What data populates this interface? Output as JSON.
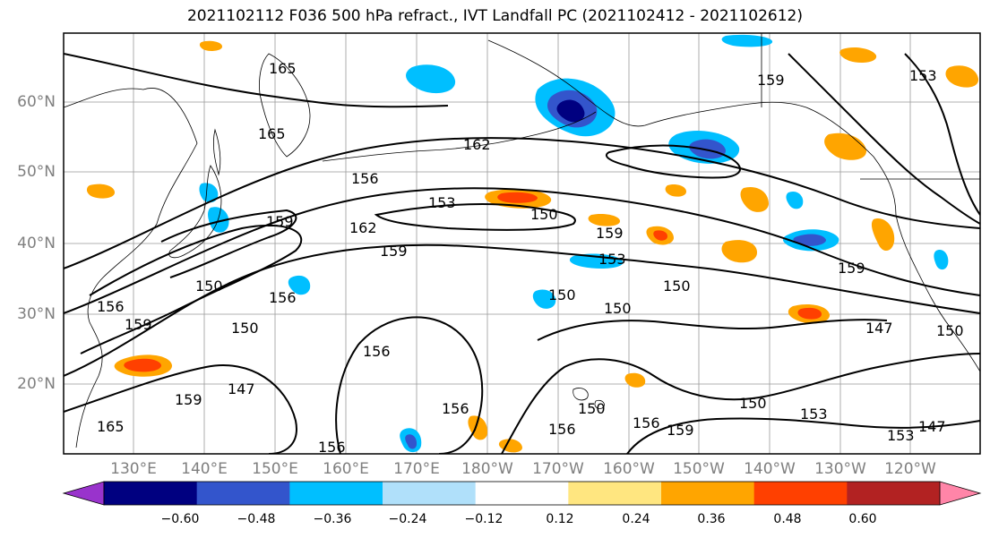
{
  "title": "2021102112 F036 500 hPa refract., IVT Landfall PC (2021102412 - 2021102612)",
  "map": {
    "lat_labels": [
      "60°N",
      "50°N",
      "40°N",
      "30°N",
      "20°N"
    ],
    "lon_labels": [
      "130°E",
      "140°E",
      "150°E",
      "160°E",
      "170°E",
      "180°W",
      "170°W",
      "160°W",
      "150°W",
      "140°W",
      "130°W",
      "120°W"
    ],
    "contour_labels": [
      "165",
      "165",
      "162",
      "156",
      "153",
      "150",
      "159",
      "162",
      "159",
      "159",
      "153",
      "150",
      "156",
      "150",
      "159",
      "150",
      "150",
      "156",
      "147",
      "159",
      "156",
      "150",
      "147",
      "156",
      "150",
      "156",
      "159",
      "153",
      "150",
      "147",
      "156",
      "153",
      "159",
      "156",
      "150",
      "159",
      "165",
      "153"
    ]
  },
  "colorbar": {
    "colors": [
      "#9933cc",
      "#000080",
      "#3355cc",
      "#00bfff",
      "#b0e0fa",
      "#ffffff",
      "#ffe680",
      "#ffa500",
      "#ff4000",
      "#b22222",
      "#ff85a8"
    ],
    "tick_labels": [
      "−0.60",
      "−0.48",
      "−0.36",
      "−0.24",
      "−0.12",
      "0.12",
      "0.24",
      "0.36",
      "0.48",
      "0.60"
    ]
  },
  "styles": {
    "grid": "#999999",
    "contour": "#000000",
    "coast": "#000000",
    "axis_label": "#7f7f7f"
  }
}
